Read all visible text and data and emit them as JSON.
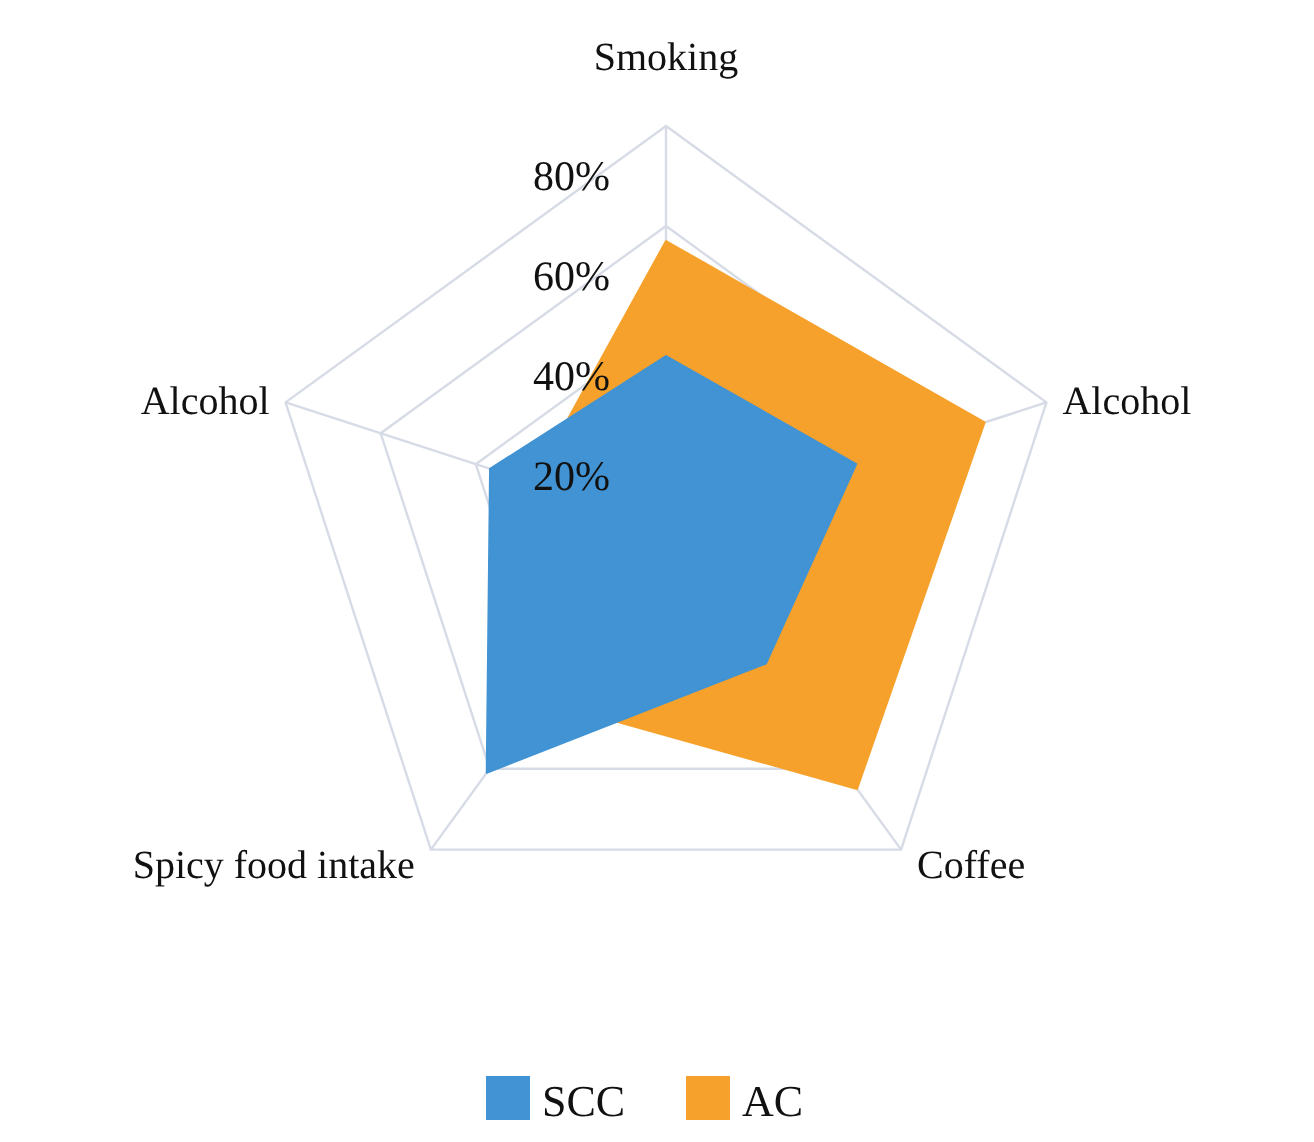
{
  "chart_data": {
    "type": "radar",
    "categories": [
      "Smoking",
      "Alcohol",
      "Coffee",
      "Spicy food intake",
      "Alcohol"
    ],
    "series": [
      {
        "name": "SCC",
        "color": "#4193d3",
        "values": [
          34,
          40,
          34,
          61,
          37
        ]
      },
      {
        "name": "AC",
        "color": "#f6a12b",
        "values": [
          57,
          67,
          65,
          43,
          28
        ]
      }
    ],
    "ylim": [
      0,
      80
    ],
    "yticks": [
      {
        "value": 20,
        "label": "20%"
      },
      {
        "value": 40,
        "label": "40%"
      },
      {
        "value": 60,
        "label": "60%"
      },
      {
        "value": 80,
        "label": "80%"
      }
    ],
    "grid": true,
    "legend": "bottom"
  }
}
